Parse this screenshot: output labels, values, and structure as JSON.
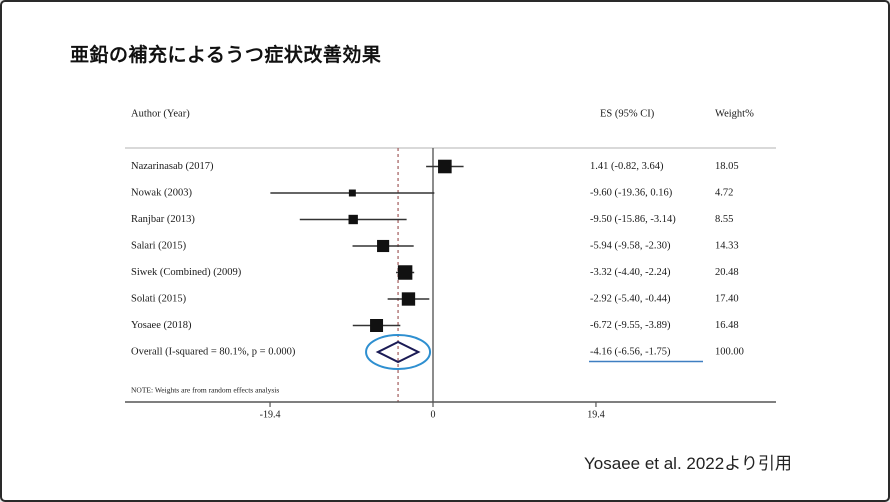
{
  "slide": {
    "title": "亜鉛の補充によるうつ症状改善効果",
    "citation": "Yosaee et al. 2022より引用"
  },
  "chart_data": {
    "type": "scatter",
    "variant": "forest-plot",
    "title": "亜鉛の補充によるうつ症状改善効果",
    "columns": {
      "author": "Author (Year)",
      "es": "ES (95% CI)",
      "weight": "Weight%"
    },
    "studies": [
      {
        "author": "Nazarinasab (2017)",
        "es": 1.41,
        "lo": -0.82,
        "hi": 3.64,
        "es_text": "1.41 (-0.82, 3.64)",
        "weight": 18.05,
        "weight_text": "18.05"
      },
      {
        "author": "Nowak (2003)",
        "es": -9.6,
        "lo": -19.36,
        "hi": 0.16,
        "es_text": "-9.60 (-19.36, 0.16)",
        "weight": 4.72,
        "weight_text": "4.72"
      },
      {
        "author": "Ranjbar (2013)",
        "es": -9.5,
        "lo": -15.86,
        "hi": -3.14,
        "es_text": "-9.50 (-15.86, -3.14)",
        "weight": 8.55,
        "weight_text": "8.55"
      },
      {
        "author": "Salari (2015)",
        "es": -5.94,
        "lo": -9.58,
        "hi": -2.3,
        "es_text": "-5.94 (-9.58, -2.30)",
        "weight": 14.33,
        "weight_text": "14.33"
      },
      {
        "author": "Siwek (Combined) (2009)",
        "es": -3.32,
        "lo": -4.4,
        "hi": -2.24,
        "es_text": "-3.32 (-4.40, -2.24)",
        "weight": 20.48,
        "weight_text": "20.48"
      },
      {
        "author": "Solati (2015)",
        "es": -2.92,
        "lo": -5.4,
        "hi": -0.44,
        "es_text": "-2.92 (-5.40, -0.44)",
        "weight": 17.4,
        "weight_text": "17.40"
      },
      {
        "author": "Yosaee (2018)",
        "es": -6.72,
        "lo": -9.55,
        "hi": -3.89,
        "es_text": "-6.72 (-9.55, -3.89)",
        "weight": 16.48,
        "weight_text": "16.48"
      }
    ],
    "overall": {
      "label": "Overall  (I-squared = 80.1%, p = 0.000)",
      "es": -4.16,
      "lo": -6.56,
      "hi": -1.75,
      "es_text": "-4.16 (-6.56, -1.75)",
      "weight_text": "100.00"
    },
    "note": "NOTE: Weights are from random effects analysis",
    "axis": {
      "tick_values": [
        -19.4,
        0,
        19.4
      ],
      "tick_labels": [
        "-19.4",
        "0",
        "19.4"
      ],
      "zero_line_at": 0,
      "dashed_line_at": -4.16,
      "xlim": [
        -36.7,
        40.8
      ],
      "grid": false
    },
    "annotations": {
      "overall_circled": true,
      "overall_es_underlined": true
    },
    "colors": {
      "square": "#111111",
      "ci_line": "#333333",
      "diamond": "#1b1b55",
      "ellipse": "#2e8fd0",
      "underline": "#3f7fc1",
      "dashed_line": "#a05a5a",
      "zero_line": "#666666",
      "axis": "#555555",
      "top_rule": "#b3b3b3",
      "text": "#1a1a1a"
    }
  }
}
